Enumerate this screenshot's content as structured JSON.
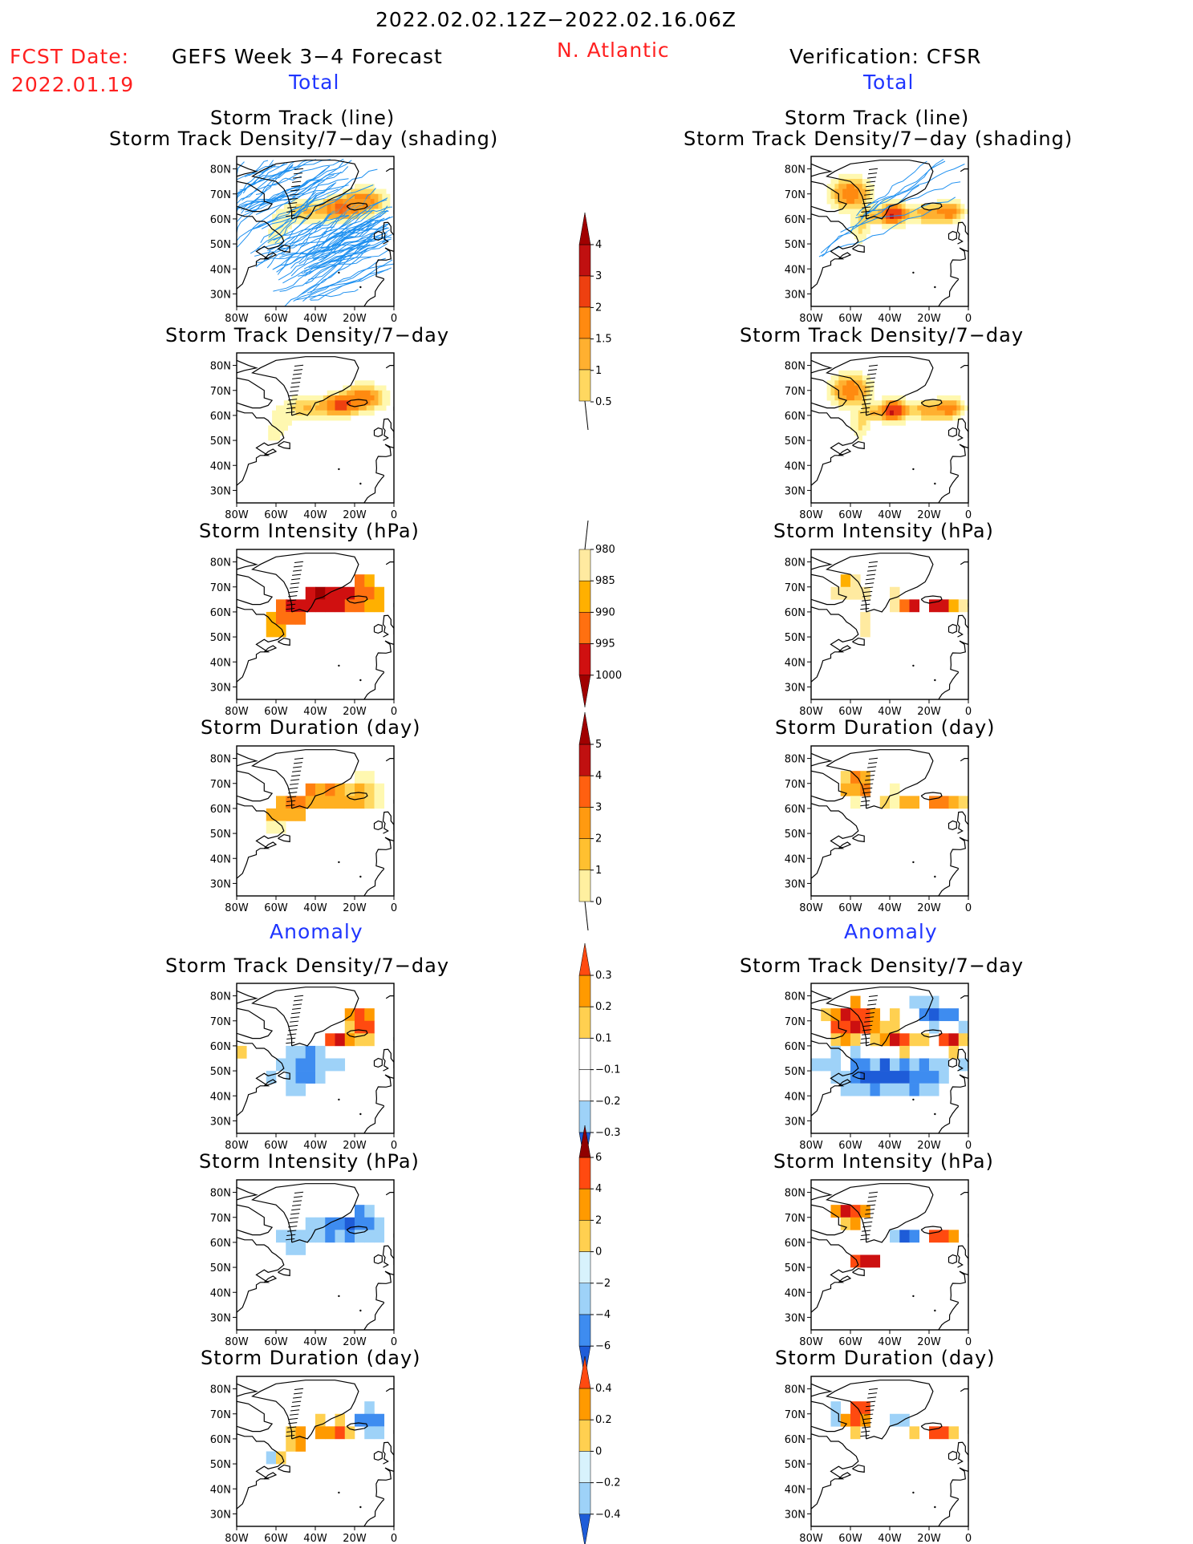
{
  "header": {
    "date_range": "2022.02.02.12Z−2022.02.16.06Z",
    "fcst_label": "FCST Date:",
    "fcst_date": "2022.01.19",
    "forecast_title": "GEFS Week 3−4 Forecast",
    "region": "N. Atlantic",
    "verification_title": "Verification: CFSR",
    "total_left": "Total",
    "total_right": "Total",
    "anomaly_left": "Anomaly",
    "anomaly_right": "Anomaly"
  },
  "panels": {
    "track_title_1": "Storm Track (line)",
    "track_title_2": "Storm Track Density/7−day (shading)",
    "density_title": "Storm Track Density/7−day",
    "intensity_title": "Storm Intensity (hPa)",
    "duration_title": "Storm Duration (day)"
  },
  "axes": {
    "lat_ticks": [
      "80N",
      "70N",
      "60N",
      "50N",
      "40N",
      "30N"
    ],
    "lon_ticks": [
      "80W",
      "60W",
      "40W",
      "20W",
      "0"
    ]
  },
  "colorbars": {
    "density": [
      "0.5",
      "1",
      "1.5",
      "2",
      "3",
      "4"
    ],
    "intensity": [
      "980",
      "985",
      "990",
      "995",
      "1000"
    ],
    "duration": [
      "0",
      "1",
      "2",
      "3",
      "4",
      "5"
    ],
    "density_anom": [
      "−0.3",
      "−0.2",
      "−0.1",
      "0.1",
      "0.2",
      "0.3"
    ],
    "intensity_anom": [
      "−6",
      "−4",
      "−2",
      "0",
      "2",
      "4",
      "6"
    ],
    "duration_anom": [
      "−0.4",
      "−0.2",
      "0",
      "0.2",
      "0.4"
    ]
  },
  "palettes": {
    "density": [
      "#fff8b0",
      "#ffd860",
      "#ffb030",
      "#ff8a10",
      "#ee4010",
      "#c01010"
    ],
    "intensity": [
      "#ffeaa0",
      "#ffb000",
      "#ff7010",
      "#d01010",
      "#a00000"
    ],
    "duration": [
      "#fff8b0",
      "#ffd860",
      "#ffb020",
      "#ff8010",
      "#e03010",
      "#a00000"
    ],
    "anom": [
      "#1e5cd8",
      "#3e8cf0",
      "#9ed2f8",
      "#d8f2fc",
      "#ffffff",
      "#fff0a0",
      "#ffd050",
      "#ff9a00",
      "#ff4a10",
      "#cc1010",
      "#900000"
    ],
    "track_line": "#1e90f0",
    "coast": "#000000"
  }
}
